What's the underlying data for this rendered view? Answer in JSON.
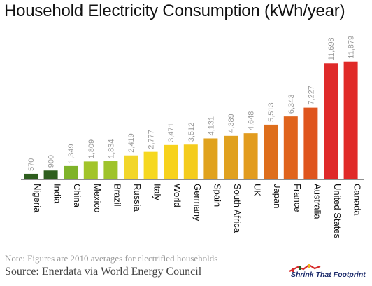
{
  "title": "Household Electricity Consumption (kWh/year)",
  "note": "Note: Figures are 2010 averages for electrified households",
  "source": "Source:  Enerdata via World Energy Council",
  "logo_text": "Shrink That Footprint",
  "chart_data": {
    "type": "bar",
    "title": "Household Electricity Consumption (kWh/year)",
    "categories": [
      "Nigeria",
      "India",
      "China",
      "Mexico",
      "Brazil",
      "Russia",
      "Italy",
      "World",
      "Germany",
      "Spain",
      "South Africa",
      "UK",
      "Japan",
      "France",
      "Australia",
      "United States",
      "Canada"
    ],
    "values": [
      570,
      900,
      1349,
      1809,
      1834,
      2419,
      2777,
      3471,
      3512,
      4131,
      4389,
      4648,
      5513,
      6343,
      7227,
      11698,
      11879
    ],
    "value_labels": [
      "570",
      "900",
      "1,349",
      "1,809",
      "1,834",
      "2,419",
      "2,777",
      "3,471",
      "3,512",
      "4,131",
      "4,389",
      "4,648",
      "5,513",
      "6,343",
      "7,227",
      "11,698",
      "11,879"
    ],
    "colors": [
      "#2e5e1e",
      "#2e5e1e",
      "#7fb32a",
      "#a2c42a",
      "#9fc32b",
      "#f2d62a",
      "#f6d820",
      "#f7d21c",
      "#f4cc1d",
      "#e0a21e",
      "#e0a11f",
      "#e29c1f",
      "#de6e1c",
      "#e0641d",
      "#df551e",
      "#df2a2a",
      "#e02a28"
    ],
    "xlabel": "",
    "ylabel": "",
    "ylim": [
      0,
      12000
    ],
    "grid": false,
    "legend": "none"
  }
}
